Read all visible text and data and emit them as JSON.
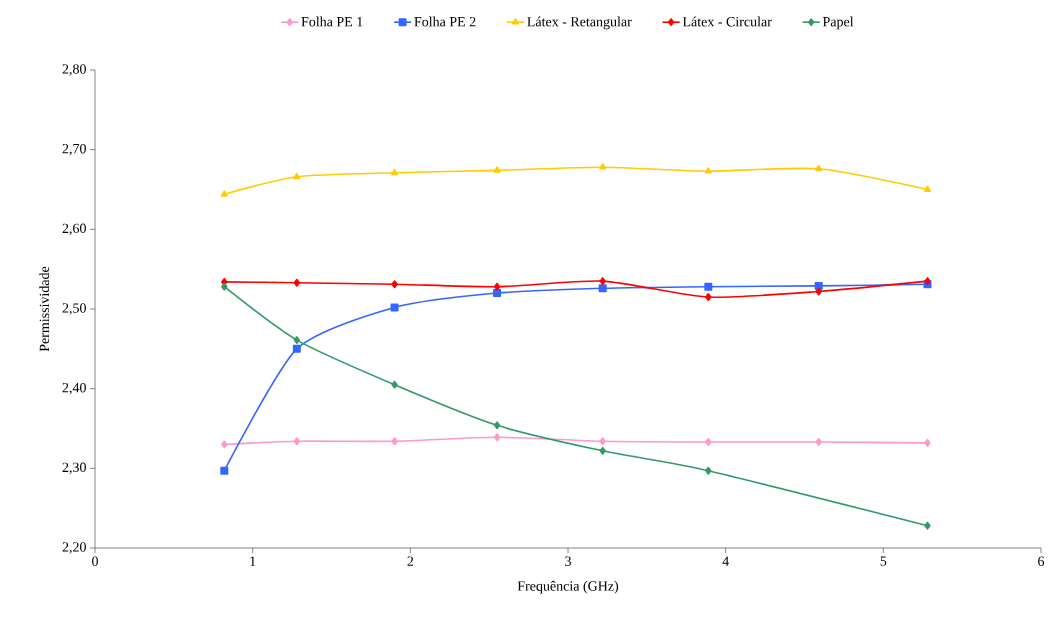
{
  "chart_data": {
    "type": "line",
    "xlabel": "Frequência (GHz)",
    "ylabel": "Permissividade",
    "x": [
      0.82,
      1.28,
      1.9,
      2.55,
      3.22,
      3.89,
      4.59,
      5.28
    ],
    "series": [
      {
        "name": "Folha PE 1",
        "color": "#ff99cc",
        "marker": "diamond",
        "values": [
          2.33,
          2.334,
          2.334,
          2.339,
          2.334,
          2.333,
          2.333,
          2.332
        ]
      },
      {
        "name": "Folha PE 2",
        "color": "#3366ff",
        "marker": "square",
        "values": [
          2.297,
          2.45,
          2.502,
          2.52,
          2.526,
          2.528,
          2.529,
          2.531
        ]
      },
      {
        "name": "Látex - Retangular",
        "color": "#ffcc00",
        "marker": "triangle",
        "values": [
          2.644,
          2.666,
          2.671,
          2.674,
          2.678,
          2.673,
          2.676,
          2.65
        ]
      },
      {
        "name": "Látex - Circular",
        "color": "#ff0000",
        "marker": "diamond",
        "values": [
          2.534,
          2.533,
          2.531,
          2.528,
          2.535,
          2.515,
          2.522,
          2.535
        ]
      },
      {
        "name": "Papel",
        "color": "#339966",
        "marker": "diamond",
        "x": [
          0.82,
          1.28,
          1.9,
          2.55,
          3.22,
          3.89,
          5.28
        ],
        "values": [
          2.528,
          2.461,
          2.405,
          2.354,
          2.322,
          2.297,
          2.228
        ]
      }
    ],
    "xlim": [
      0,
      6
    ],
    "xticks": [
      0,
      1,
      2,
      3,
      4,
      5,
      6
    ],
    "ylim": [
      2.2,
      2.8
    ],
    "yticks": [
      {
        "value": 2.2,
        "label": "2,20"
      },
      {
        "value": 2.3,
        "label": "2,30"
      },
      {
        "value": 2.4,
        "label": "2,40"
      },
      {
        "value": 2.5,
        "label": "2,50"
      },
      {
        "value": 2.6,
        "label": "2,60"
      },
      {
        "value": 2.7,
        "label": "2,70"
      },
      {
        "value": 2.8,
        "label": "2,80"
      }
    ],
    "grid": false,
    "legend": "top",
    "line_style": "solid"
  }
}
